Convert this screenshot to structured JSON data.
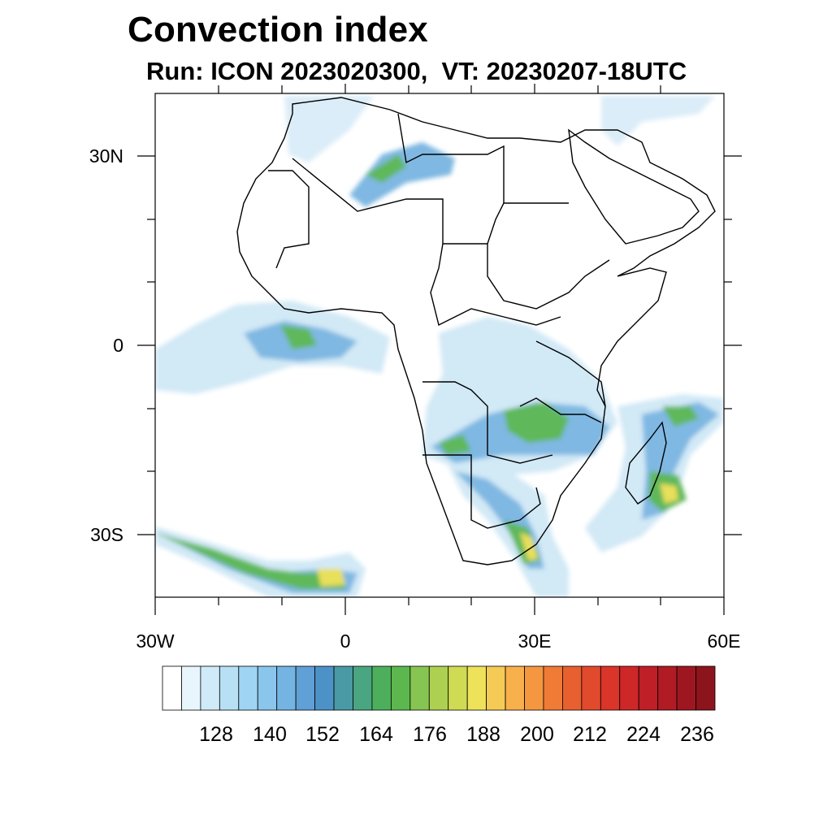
{
  "title": "Convection index",
  "subtitle": "Run: ICON 2023020300,  VT: 20230207-18UTC",
  "map": {
    "lon_labels": [
      "30W",
      "0",
      "30E",
      "60E"
    ],
    "lat_labels": [
      "30N",
      "0",
      "30S"
    ]
  },
  "colorbar": {
    "labels": [
      "128",
      "140",
      "152",
      "164",
      "176",
      "188",
      "200",
      "212",
      "224",
      "236"
    ],
    "colors": [
      "#ffffff",
      "#e8f5fc",
      "#cfeaf8",
      "#b7e0f5",
      "#9fd5f3",
      "#8ac6ec",
      "#74b4e3",
      "#5fa0d6",
      "#4d92c7",
      "#4a9aa5",
      "#4aa680",
      "#4daf5c",
      "#5cb84e",
      "#86c551",
      "#aed051",
      "#cfdb52",
      "#ede25a",
      "#f5cb56",
      "#f7b04c",
      "#f59741",
      "#ef7b36",
      "#e86030",
      "#e14a2c",
      "#d93528",
      "#ce2728",
      "#bf1f27",
      "#b01b24",
      "#9e1720",
      "#8c141d"
    ]
  },
  "fill_colors": {
    "light": "#d2e9f6",
    "blue": "#7fb8e2",
    "mid": "#5a9fd3",
    "green": "#5fb85a",
    "yellow": "#e8df5a",
    "orange": "#f2a645"
  }
}
